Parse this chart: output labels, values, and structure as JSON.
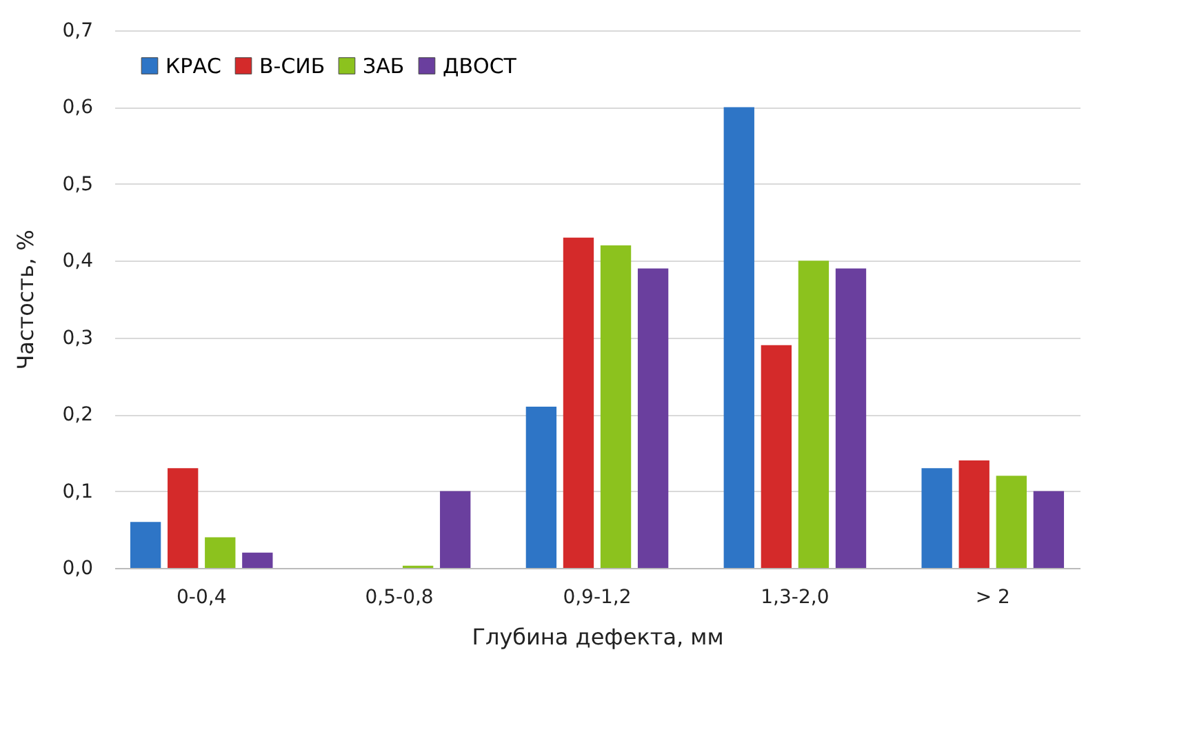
{
  "chart_data": {
    "type": "bar",
    "xlabel": "Глубина дефекта, мм",
    "ylabel": "Частость, %",
    "categories": [
      "0-0,4",
      "0,5-0,8",
      "0,9-1,2",
      "1,3-2,0",
      "> 2"
    ],
    "series": [
      {
        "name": "КРАС",
        "color": "#2e75c6",
        "values": [
          0.06,
          0,
          0.21,
          0.6,
          0.13
        ]
      },
      {
        "name": "В-СИБ",
        "color": "#d42a2a",
        "values": [
          0.13,
          0,
          0.43,
          0.29,
          0.14
        ]
      },
      {
        "name": "ЗАБ",
        "color": "#8cc21e",
        "values": [
          0.04,
          0.003,
          0.42,
          0.4,
          0.12
        ]
      },
      {
        "name": "ДВОСТ",
        "color": "#6a3f9e",
        "values": [
          0.02,
          0.1,
          0.39,
          0.39,
          0.1
        ]
      }
    ],
    "ylim": [
      0,
      0.7
    ],
    "yticks": [
      {
        "value": 0,
        "label": "0,0"
      },
      {
        "value": 0.1,
        "label": "0,1"
      },
      {
        "value": 0.2,
        "label": "0,2"
      },
      {
        "value": 0.3,
        "label": "0,3"
      },
      {
        "value": 0.4,
        "label": "0,4"
      },
      {
        "value": 0.5,
        "label": "0,5"
      },
      {
        "value": 0.6,
        "label": "0,6"
      },
      {
        "value": 0.7,
        "label": "0,7"
      }
    ],
    "grid": "y",
    "legend": "top left"
  }
}
